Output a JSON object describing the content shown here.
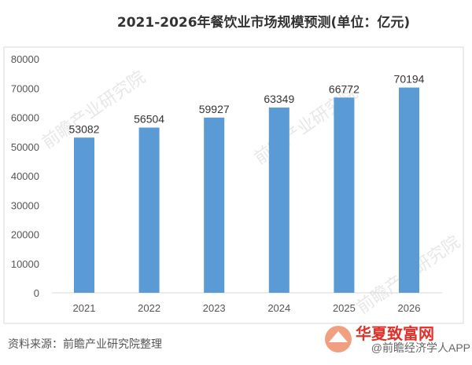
{
  "chart_data": {
    "type": "bar",
    "title": "2021-2026年餐饮业市场规模预测(单位：亿元)",
    "categories": [
      "2021",
      "2022",
      "2023",
      "2024",
      "2025",
      "2026"
    ],
    "values": [
      53082,
      56504,
      59927,
      63349,
      66772,
      70194
    ],
    "yticks": [
      0,
      10000,
      20000,
      30000,
      40000,
      50000,
      60000,
      70000,
      80000
    ],
    "ylim": [
      0,
      80000
    ],
    "xlabel": "",
    "ylabel": "",
    "grid": false,
    "bar_color": "#5b9bd5"
  },
  "footer": {
    "source": "资料来源：前瞻产业研究院整理",
    "watermark_brand": "华夏致富网",
    "watermark_app": "@前瞻经济学人APP"
  }
}
